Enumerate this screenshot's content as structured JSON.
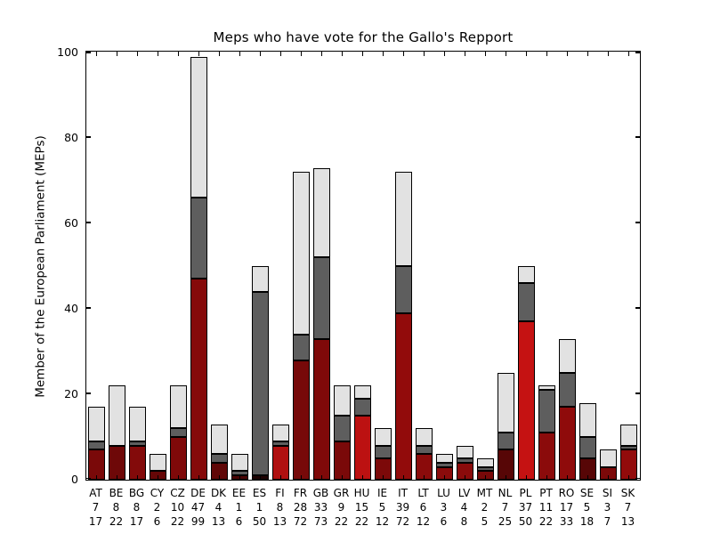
{
  "chart_data": {
    "type": "bar",
    "stacked": true,
    "title": "Meps who have vote for the Gallo's Repport",
    "ylabel": "Member of the European Parliament (MEPs)",
    "xlabel": "",
    "ylim": [
      0,
      100
    ],
    "yticks": [
      0,
      20,
      40,
      60,
      80,
      100
    ],
    "grid": false,
    "legend": "none",
    "segment_colors": {
      "middle_segment": "#5e5e5e",
      "top_segment": "#e2e2e2",
      "bar_edge": "#000000",
      "background": "#ffffff"
    },
    "categories": [
      "AT",
      "BE",
      "BG",
      "CY",
      "CZ",
      "DE",
      "DK",
      "EE",
      "ES",
      "FI",
      "FR",
      "GB",
      "GR",
      "HU",
      "IE",
      "IT",
      "LT",
      "LU",
      "LV",
      "MT",
      "NL",
      "PL",
      "PT",
      "RO",
      "SE",
      "SI",
      "SK"
    ],
    "countries": [
      {
        "code": "AT",
        "votes_for": 7,
        "total": 17,
        "red_top": 7,
        "gray_top": 9,
        "red_color": "#7a0909"
      },
      {
        "code": "BE",
        "votes_for": 8,
        "total": 22,
        "red_top": 8,
        "gray_top": 8,
        "red_color": "#6e0808"
      },
      {
        "code": "BG",
        "votes_for": 8,
        "total": 17,
        "red_top": 8,
        "gray_top": 9,
        "red_color": "#830a0a"
      },
      {
        "code": "CY",
        "votes_for": 2,
        "total": 6,
        "red_top": 2,
        "gray_top": 2,
        "red_color": "#660707"
      },
      {
        "code": "CZ",
        "votes_for": 10,
        "total": 22,
        "red_top": 10,
        "gray_top": 12,
        "red_color": "#7f0909"
      },
      {
        "code": "DE",
        "votes_for": 47,
        "total": 99,
        "red_top": 47,
        "gray_top": 66,
        "red_color": "#850a0a"
      },
      {
        "code": "DK",
        "votes_for": 4,
        "total": 13,
        "red_top": 4,
        "gray_top": 6,
        "red_color": "#600707"
      },
      {
        "code": "EE",
        "votes_for": 1,
        "total": 6,
        "red_top": 1,
        "gray_top": 2,
        "red_color": "#4a0505"
      },
      {
        "code": "ES",
        "votes_for": 1,
        "total": 50,
        "red_top": 1,
        "gray_top": 44,
        "red_color": "#200303"
      },
      {
        "code": "FI",
        "votes_for": 8,
        "total": 13,
        "red_top": 8,
        "gray_top": 9,
        "red_color": "#b01010"
      },
      {
        "code": "FR",
        "votes_for": 28,
        "total": 72,
        "red_top": 28,
        "gray_top": 34,
        "red_color": "#770909"
      },
      {
        "code": "GB",
        "votes_for": 33,
        "total": 73,
        "red_top": 33,
        "gray_top": 52,
        "red_color": "#7f0909"
      },
      {
        "code": "GR",
        "votes_for": 9,
        "total": 22,
        "red_top": 9,
        "gray_top": 15,
        "red_color": "#7a0909"
      },
      {
        "code": "HU",
        "votes_for": 15,
        "total": 22,
        "red_top": 15,
        "gray_top": 19,
        "red_color": "#bc1111"
      },
      {
        "code": "IE",
        "votes_for": 5,
        "total": 12,
        "red_top": 5,
        "gray_top": 8,
        "red_color": "#7c0909"
      },
      {
        "code": "IT",
        "votes_for": 39,
        "total": 72,
        "red_top": 39,
        "gray_top": 50,
        "red_color": "#920b0b"
      },
      {
        "code": "LT",
        "votes_for": 6,
        "total": 12,
        "red_top": 6,
        "gray_top": 8,
        "red_color": "#8b0b0b"
      },
      {
        "code": "LU",
        "votes_for": 3,
        "total": 6,
        "red_top": 3,
        "gray_top": 4,
        "red_color": "#8b0b0b"
      },
      {
        "code": "LV",
        "votes_for": 4,
        "total": 8,
        "red_top": 4,
        "gray_top": 5,
        "red_color": "#8b0b0b"
      },
      {
        "code": "MT",
        "votes_for": 2,
        "total": 5,
        "red_top": 2,
        "gray_top": 3,
        "red_color": "#780909"
      },
      {
        "code": "NL",
        "votes_for": 7,
        "total": 25,
        "red_top": 7,
        "gray_top": 11,
        "red_color": "#570606"
      },
      {
        "code": "PL",
        "votes_for": 37,
        "total": 50,
        "red_top": 37,
        "gray_top": 46,
        "red_color": "#c51212"
      },
      {
        "code": "PT",
        "votes_for": 11,
        "total": 22,
        "red_top": 11,
        "gray_top": 21,
        "red_color": "#8b0b0b"
      },
      {
        "code": "RO",
        "votes_for": 17,
        "total": 33,
        "red_top": 17,
        "gray_top": 25,
        "red_color": "#8f0b0b"
      },
      {
        "code": "SE",
        "votes_for": 5,
        "total": 18,
        "red_top": 5,
        "gray_top": 10,
        "red_color": "#570606"
      },
      {
        "code": "SI",
        "votes_for": 3,
        "total": 7,
        "red_top": 3,
        "gray_top": 3,
        "red_color": "#7c0909"
      },
      {
        "code": "SK",
        "votes_for": 7,
        "total": 13,
        "red_top": 7,
        "gray_top": 8,
        "red_color": "#920b0b"
      }
    ]
  }
}
